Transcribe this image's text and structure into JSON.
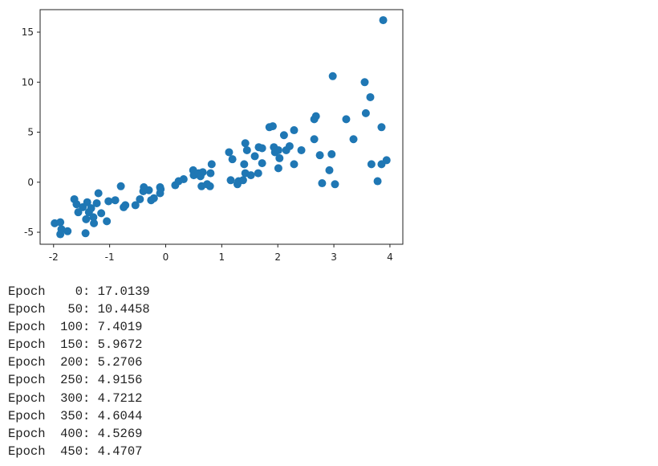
{
  "chart_data": {
    "type": "scatter",
    "color": "#1f77b4",
    "x": [
      -1.98,
      -1.88,
      -1.88,
      -1.86,
      -1.75,
      -1.63,
      -1.59,
      -1.56,
      -1.48,
      -1.43,
      -1.42,
      -1.4,
      -1.37,
      -1.33,
      -1.29,
      -1.28,
      -1.23,
      -1.2,
      -1.15,
      -1.05,
      -1.02,
      -0.9,
      -0.8,
      -0.75,
      -0.72,
      -0.54,
      -0.46,
      -0.4,
      -0.39,
      -0.3,
      -0.26,
      -0.21,
      -0.1,
      -0.1,
      -0.09,
      0.17,
      0.23,
      0.32,
      0.49,
      0.5,
      0.59,
      0.62,
      0.64,
      0.66,
      0.74,
      0.79,
      0.8,
      0.82,
      1.13,
      1.16,
      1.19,
      1.28,
      1.3,
      1.38,
      1.4,
      1.42,
      1.45,
      1.42,
      1.52,
      1.59,
      1.65,
      1.66,
      1.72,
      1.72,
      1.85,
      1.91,
      1.93,
      1.95,
      2.01,
      2.01,
      2.03,
      2.11,
      2.15,
      2.21,
      2.29,
      2.29,
      2.42,
      2.65,
      2.65,
      2.68,
      2.75,
      2.79,
      2.92,
      2.96,
      2.98,
      3.02,
      3.22,
      3.35,
      3.55,
      3.57,
      3.65,
      3.67,
      3.78,
      3.85,
      3.85,
      3.88,
      3.94
    ],
    "values": [
      -4.1,
      -4.0,
      -5.2,
      -4.7,
      -4.9,
      -1.7,
      -2.2,
      -3.0,
      -2.5,
      -5.1,
      -3.7,
      -2.0,
      -3.0,
      -2.6,
      -3.5,
      -4.1,
      -2.1,
      -1.1,
      -3.1,
      -3.9,
      -1.9,
      -1.8,
      -0.4,
      -2.5,
      -2.3,
      -2.3,
      -1.7,
      -0.9,
      -0.5,
      -0.8,
      -1.8,
      -1.6,
      -0.5,
      -1.1,
      -0.7,
      -0.3,
      0.1,
      0.3,
      1.2,
      0.7,
      0.9,
      0.6,
      -0.4,
      1.0,
      -0.2,
      -0.4,
      0.9,
      1.8,
      3.0,
      0.2,
      2.3,
      -0.2,
      0.1,
      0.2,
      1.8,
      3.9,
      3.2,
      0.9,
      0.7,
      2.6,
      0.9,
      3.5,
      3.4,
      1.9,
      5.5,
      5.6,
      3.5,
      3.0,
      3.2,
      1.4,
      2.4,
      4.7,
      3.2,
      3.6,
      5.2,
      1.8,
      3.2,
      4.3,
      6.3,
      6.6,
      2.7,
      -0.1,
      1.2,
      2.8,
      10.6,
      -0.2,
      6.3,
      4.3,
      10.0,
      6.9,
      8.5,
      1.8,
      0.1,
      5.5,
      1.8,
      16.2,
      2.2
    ],
    "xlim": [
      -2.24,
      4.23
    ],
    "xticks": [
      -2,
      -1,
      0,
      1,
      2,
      3,
      4
    ],
    "ylim": [
      -6.2,
      17.25
    ],
    "yticks": [
      -5,
      0,
      5,
      10,
      15
    ]
  },
  "log": {
    "lines": [
      "Epoch    0: 17.0139",
      "Epoch   50: 10.4458",
      "Epoch  100: 7.4019",
      "Epoch  150: 5.9672",
      "Epoch  200: 5.2706",
      "Epoch  250: 4.9156",
      "Epoch  300: 4.7212",
      "Epoch  350: 4.6044",
      "Epoch  400: 4.5269",
      "Epoch  450: 4.4707"
    ]
  }
}
